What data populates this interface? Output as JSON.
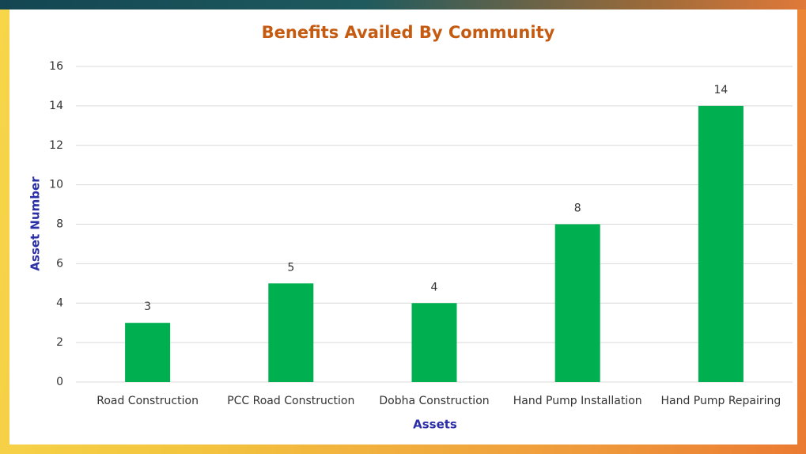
{
  "chart_data": {
    "type": "bar",
    "title": "Benefits Availed By Community",
    "x_label": "Assets",
    "y_label": "Asset Number",
    "categories": [
      "Road Construction",
      "PCC Road Construction",
      "Dobha Construction",
      "Hand Pump Installation",
      "Hand Pump Repairing"
    ],
    "values": [
      3,
      5,
      4,
      8,
      14
    ],
    "color": "#00b050",
    "ylim": [
      0,
      16
    ],
    "yticks": [
      0,
      2,
      4,
      6,
      8,
      10,
      12,
      14,
      16
    ],
    "grid": true
  }
}
